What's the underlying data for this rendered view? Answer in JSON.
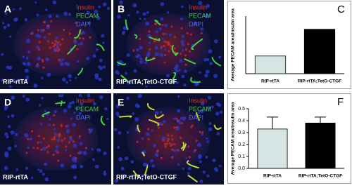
{
  "figure": {
    "panels": [
      {
        "letter": "A",
        "stains": [
          "Insulin",
          "PECAM",
          "DAPI"
        ],
        "caption": "RIP-rtTA"
      },
      {
        "letter": "B",
        "stains": [
          "Insulin",
          "PECAM",
          "DAPI"
        ],
        "caption": "RIP-rtTA;TetO-CTGF"
      },
      {
        "letter": "D",
        "stains": [
          "Insulin",
          "PECAM",
          "DAPI"
        ],
        "caption": "RIP-rtTA"
      },
      {
        "letter": "E",
        "stains": [
          "Insulin",
          "PECAM",
          "DAPI"
        ],
        "caption": "RIP-rtTA;TetO-CTGF"
      }
    ]
  },
  "chart_data": [
    {
      "type": "bar",
      "letter": "C",
      "ylabel": "Average PECAM area/insulin area",
      "categories": [
        "RIP-rtTA",
        "RIP-rtTA;TetO-CTGF"
      ],
      "values": [
        0.43,
        1.08
      ],
      "colors": [
        "#d7e4e4",
        "#000000"
      ],
      "ylim": [
        0,
        1.4
      ]
    },
    {
      "type": "bar",
      "letter": "F",
      "ylabel": "Average PECAM area/insulin area",
      "categories": [
        "RIP-rtTA",
        "RIP-rtTA;TetO-CTGF"
      ],
      "values": [
        0.33,
        0.38
      ],
      "errors": [
        0.1,
        0.05
      ],
      "colors": [
        "#d7e4e4",
        "#000000"
      ],
      "ylim": [
        0,
        0.5
      ],
      "yticks": [
        {
          "value": 0,
          "label": "0.0"
        },
        0.1,
        0.2,
        0.3,
        0.4,
        0.5
      ]
    }
  ]
}
